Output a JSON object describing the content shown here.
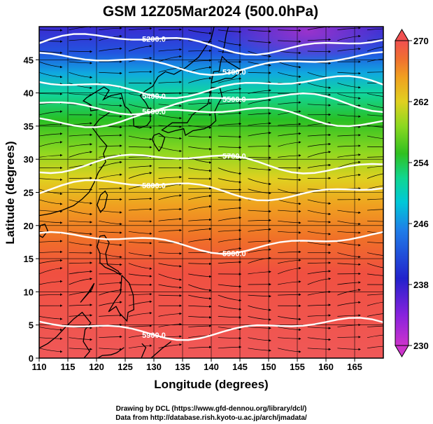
{
  "title": "GSM 12Z05Mar2024 (500.0hPa)",
  "xlabel": "Longitude (degrees)",
  "ylabel": "Latitude  (degrees)",
  "credits": [
    "Drawing by DCL (https://www.gfd-dennou.org/library/dcl/)",
    "Data from http://database.rish.kyoto-u.ac.jp/arch/jmadata/"
  ],
  "colors": {
    "land_coast": "#000000",
    "contour": "#ffffff",
    "streamline": "#000000"
  },
  "map": {
    "projection": "equirectangular",
    "lon_range": [
      110,
      170
    ],
    "lat_range": [
      0,
      50
    ],
    "x_ticks": [
      "110",
      "115",
      "120",
      "125",
      "130",
      "135",
      "140",
      "145",
      "150",
      "155",
      "160",
      "165"
    ],
    "y_ticks": [
      "0",
      "5",
      "10",
      "15",
      "20",
      "25",
      "30",
      "35",
      "40",
      "45"
    ],
    "grid": true
  },
  "colorbar": {
    "min": 230,
    "max": 270,
    "tick_labels": [
      "270",
      "262",
      "254",
      "246",
      "238",
      "230"
    ],
    "colors": [
      "#cc33cc",
      "#8822dd",
      "#2222cc",
      "#1f7fe8",
      "#00c8d8",
      "#10d690",
      "#30c020",
      "#8cd820",
      "#e0d020",
      "#f0a020",
      "#f07030",
      "#f05050"
    ]
  },
  "contours": [
    {
      "label": "5200.0",
      "lat": 47.5
    },
    {
      "label": "5300.0",
      "lat": 44.5
    },
    {
      "label": "5400.0",
      "lat": 41.0
    },
    {
      "label": "5500.0",
      "lat": 38.5
    },
    {
      "label": "5600.0",
      "lat": 36.5
    },
    {
      "label": "5700.0",
      "lat": 29.5
    },
    {
      "label": "5800.0",
      "lat": 25.5
    },
    {
      "label": "5900.0",
      "lat": 17.5
    },
    {
      "label": "5900.0",
      "lat": 4.5
    }
  ]
}
